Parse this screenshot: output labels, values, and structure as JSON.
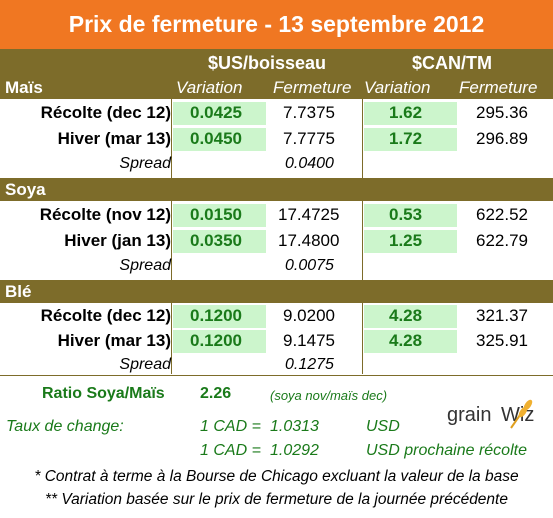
{
  "title": "Prix de fermeture - 13 septembre 2012",
  "headers": {
    "us_group": "$US/boisseau",
    "can_group": "$CAN/TM",
    "col_variation": "Variation",
    "col_fermeture": "Fermeture"
  },
  "sections": [
    {
      "name": "Maïs",
      "rows": [
        {
          "label": "Récolte (dec 12)",
          "us_var": "0.0425",
          "us_close": "7.7375",
          "can_var": "1.62",
          "can_close": "295.36"
        },
        {
          "label": "Hiver (mar 13)",
          "us_var": "0.0450",
          "us_close": "7.7775",
          "can_var": "1.72",
          "can_close": "296.89"
        }
      ],
      "spread_label": "Spread",
      "spread_value": "0.0400"
    },
    {
      "name": "Soya",
      "rows": [
        {
          "label": "Récolte (nov 12)",
          "us_var": "0.0150",
          "us_close": "17.4725",
          "can_var": "0.53",
          "can_close": "622.52"
        },
        {
          "label": "Hiver (jan 13)",
          "us_var": "0.0350",
          "us_close": "17.4800",
          "can_var": "1.25",
          "can_close": "622.79"
        }
      ],
      "spread_label": "Spread",
      "spread_value": "0.0075"
    },
    {
      "name": "Blé",
      "rows": [
        {
          "label": "Récolte (dec 12)",
          "us_var": "0.1200",
          "us_close": "9.0200",
          "can_var": "4.28",
          "can_close": "321.37"
        },
        {
          "label": "Hiver (mar 13)",
          "us_var": "0.1200",
          "us_close": "9.1475",
          "can_var": "4.28",
          "can_close": "325.91"
        }
      ],
      "spread_label": "Spread",
      "spread_value": "0.1275"
    }
  ],
  "ratio": {
    "label": "Ratio Soya/Maïs",
    "value": "2.26",
    "note": "(soya nov/maïs dec)"
  },
  "exchange": {
    "label": "Taux de change:",
    "line1_cad": "1 CAD =",
    "line1_value": "1.0313",
    "line1_unit": "USD",
    "line2_cad": "1 CAD =",
    "line2_value": "1.0292",
    "line2_unit": "USD prochaine récolte"
  },
  "logo": {
    "text_grain": "grain",
    "text_wiz": "Wiz"
  },
  "footnotes": [
    "* Contrat à terme à la Bourse de Chicago excluant la valeur de la base",
    "** Variation basée sur le prix de fermeture de la journée précédente"
  ],
  "colors": {
    "title_bg": "#f07722",
    "header_bg": "#7d6c2a",
    "green_cell": "#ccf5cc",
    "green_text": "#1a7a1a"
  }
}
